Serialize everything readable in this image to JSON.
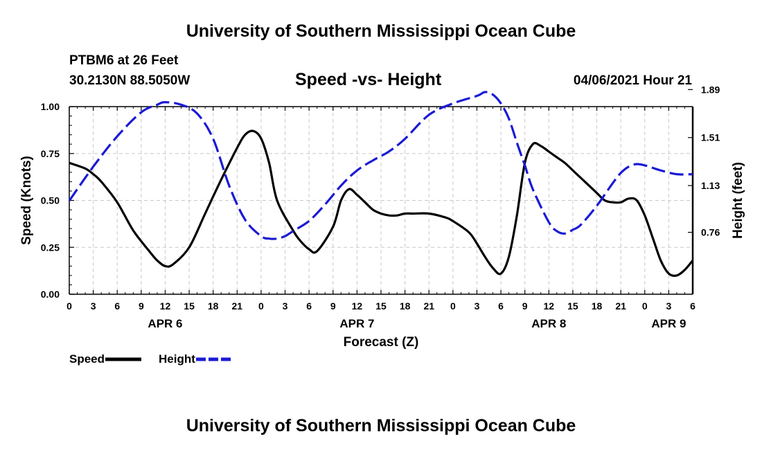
{
  "page": {
    "title_top": "University of Southern Mississippi Ocean Cube",
    "title_bottom": "University of Southern Mississippi Ocean Cube",
    "station": "PTBM6 at 26 Feet",
    "coords": "30.2130N  88.5050W",
    "timestamp": "04/06/2021 Hour 21"
  },
  "chart_data": {
    "type": "line",
    "title": "Speed -vs- Height",
    "xlabel": "Forecast (Z)",
    "ylabel": "Speed (Knots)",
    "y2label": "Height (feet)",
    "x_range": [
      0,
      78
    ],
    "ylim": [
      0,
      1.0
    ],
    "y2lim": [
      0.27,
      1.755
    ],
    "grid": true,
    "x_ticks": [
      0,
      3,
      6,
      9,
      12,
      15,
      18,
      21,
      24,
      27,
      30,
      33,
      36,
      39,
      42,
      45,
      48,
      51,
      54,
      57,
      60,
      63,
      66,
      69,
      72,
      75,
      78
    ],
    "x_tick_labels": [
      "0",
      "3",
      "6",
      "9",
      "12",
      "15",
      "18",
      "21",
      "0",
      "3",
      "6",
      "9",
      "12",
      "15",
      "18",
      "21",
      "0",
      "3",
      "6",
      "9",
      "12",
      "15",
      "18",
      "21",
      "0",
      "3",
      "6"
    ],
    "y_ticks": [
      0,
      0.25,
      0.5,
      0.75,
      1.0
    ],
    "y_tick_labels": [
      "0.00",
      "0.25",
      "0.50",
      "0.75",
      "1.00"
    ],
    "y2_ticks": [
      0.76,
      1.13,
      1.51,
      1.89
    ],
    "y2_tick_labels": [
      "0.76",
      "1.13",
      "1.51",
      "1.89"
    ],
    "day_labels": [
      {
        "x": 12,
        "label": "APR 6"
      },
      {
        "x": 36,
        "label": "APR 7"
      },
      {
        "x": 60,
        "label": "APR 8"
      },
      {
        "x": 75,
        "label": "APR 9"
      }
    ],
    "legend": [
      {
        "name": "Speed",
        "color": "#000000",
        "style": "solid"
      },
      {
        "name": "Height",
        "color": "#1a1ad6",
        "style": "dashed"
      }
    ],
    "series": [
      {
        "name": "Speed",
        "axis": "left",
        "color": "#000000",
        "style": "solid",
        "x": [
          0,
          2,
          3,
          4,
          6,
          8,
          10,
          11,
          12,
          13,
          15,
          17,
          19,
          21,
          22,
          23,
          24,
          25,
          26,
          28,
          29,
          30,
          31,
          33,
          34,
          35,
          36,
          37,
          38,
          39,
          40,
          41,
          42,
          43,
          45,
          47,
          48,
          50,
          51,
          52,
          53,
          54,
          55,
          56,
          57,
          58,
          59,
          60,
          61,
          62,
          63,
          64,
          65,
          66,
          67,
          68,
          69,
          70,
          71,
          72,
          73,
          74,
          75,
          76,
          77,
          78
        ],
        "values": [
          0.7,
          0.67,
          0.64,
          0.6,
          0.49,
          0.34,
          0.23,
          0.18,
          0.15,
          0.16,
          0.25,
          0.43,
          0.61,
          0.78,
          0.85,
          0.87,
          0.83,
          0.7,
          0.5,
          0.34,
          0.28,
          0.24,
          0.23,
          0.36,
          0.5,
          0.56,
          0.53,
          0.49,
          0.45,
          0.43,
          0.42,
          0.42,
          0.43,
          0.43,
          0.43,
          0.41,
          0.39,
          0.33,
          0.27,
          0.2,
          0.14,
          0.11,
          0.2,
          0.42,
          0.7,
          0.8,
          0.79,
          0.76,
          0.73,
          0.7,
          0.66,
          0.62,
          0.58,
          0.54,
          0.5,
          0.49,
          0.49,
          0.51,
          0.5,
          0.42,
          0.3,
          0.18,
          0.11,
          0.1,
          0.13,
          0.18
        ]
      },
      {
        "name": "Height",
        "axis": "right",
        "color": "#1a1ad6",
        "style": "dashed",
        "x": [
          0,
          3,
          6,
          9,
          11,
          12,
          14,
          16,
          18,
          20,
          22,
          24,
          25,
          26,
          27,
          28,
          30,
          32,
          34,
          36,
          38,
          40,
          42,
          45,
          48,
          51,
          52,
          53,
          54,
          55,
          56,
          57,
          58,
          60,
          61,
          62,
          63,
          64,
          66,
          68,
          69,
          70,
          71,
          72,
          73,
          74,
          76,
          78
        ],
        "values": [
          1.01,
          1.28,
          1.52,
          1.71,
          1.77,
          1.79,
          1.77,
          1.7,
          1.5,
          1.13,
          0.86,
          0.73,
          0.71,
          0.71,
          0.73,
          0.77,
          0.85,
          0.98,
          1.13,
          1.25,
          1.33,
          1.4,
          1.5,
          1.69,
          1.78,
          1.84,
          1.87,
          1.85,
          1.78,
          1.66,
          1.47,
          1.29,
          1.1,
          0.84,
          0.77,
          0.75,
          0.78,
          0.82,
          0.97,
          1.15,
          1.23,
          1.28,
          1.3,
          1.29,
          1.27,
          1.25,
          1.22,
          1.22
        ]
      }
    ]
  }
}
